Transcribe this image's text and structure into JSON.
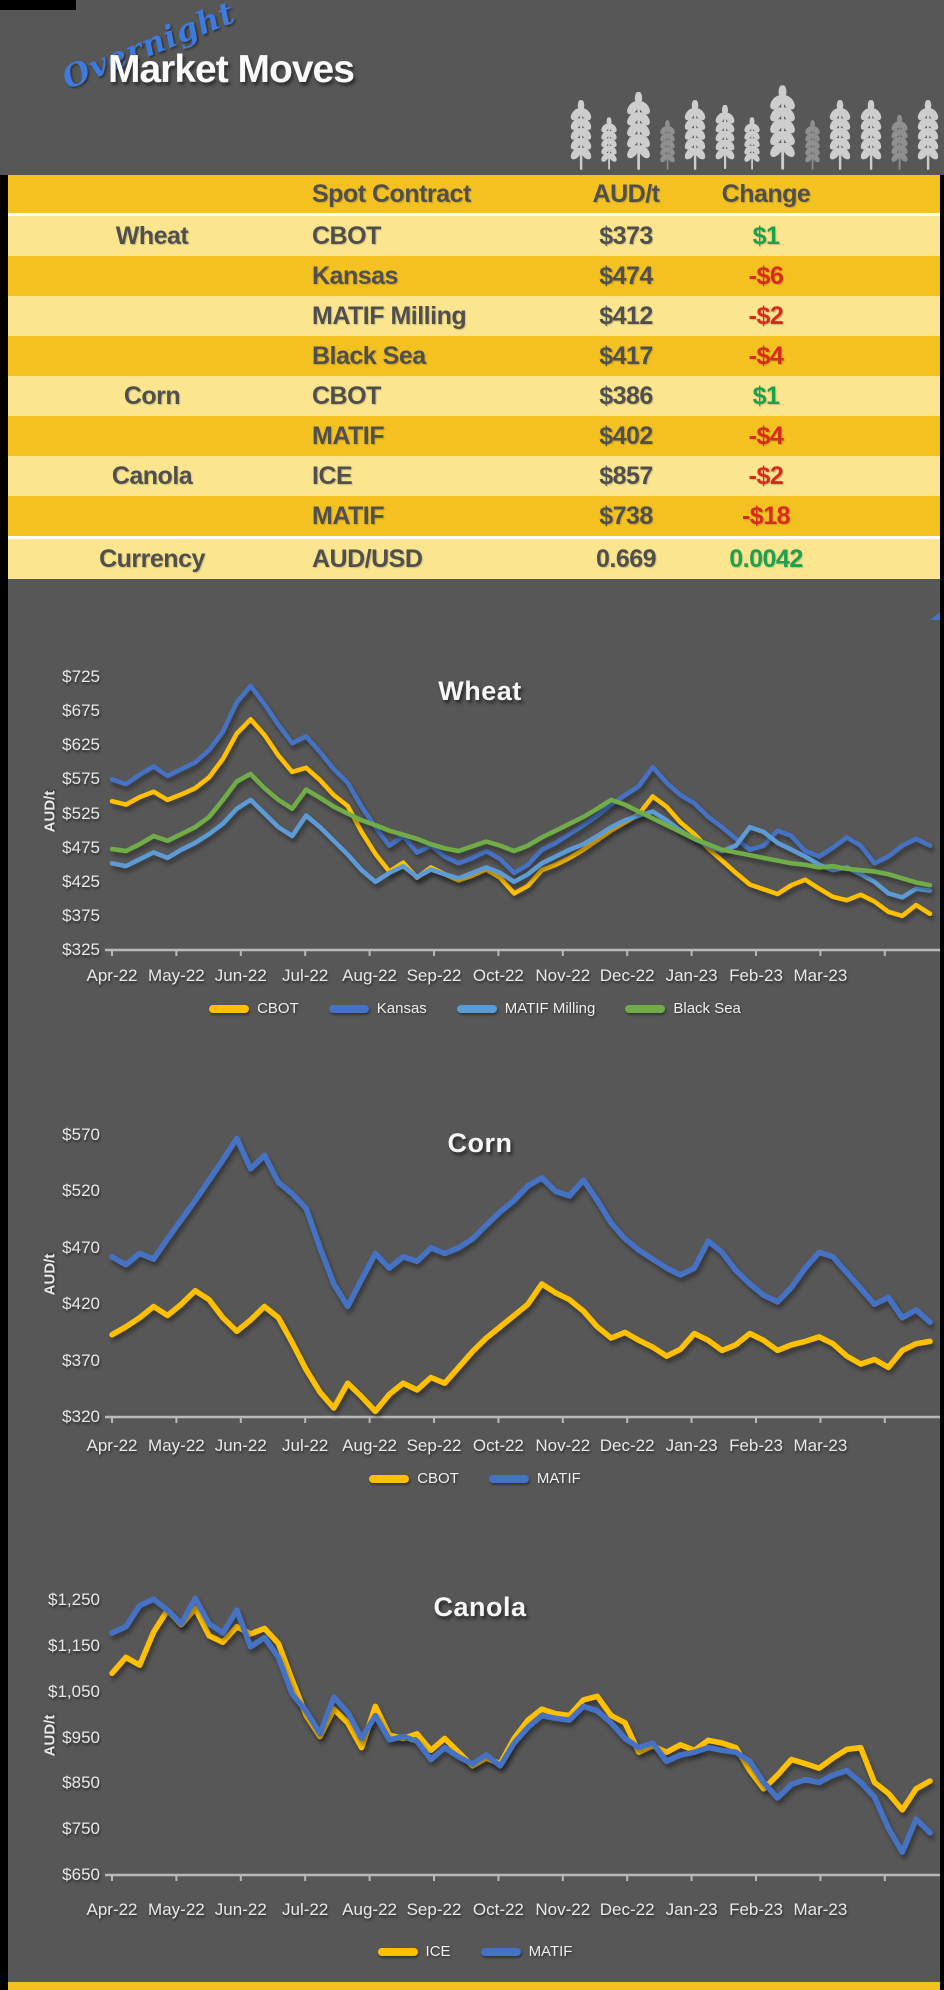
{
  "header": {
    "logo_script": "Overnight",
    "logo_main": "Market Moves",
    "wheat_icons": {
      "heights": [
        70,
        53,
        78,
        50,
        70,
        66,
        53,
        85,
        50,
        70,
        70,
        55,
        70
      ],
      "dim": [
        0,
        0,
        0,
        1,
        0,
        0,
        0,
        0,
        1,
        0,
        0,
        1,
        0
      ]
    }
  },
  "table": {
    "columns": [
      "",
      "Spot Contract",
      "AUD/t",
      "Change"
    ],
    "rows": [
      {
        "commodity": "Wheat",
        "contract": "CBOT",
        "value": "$373",
        "change": "$1",
        "direction": "up",
        "shade": "pale"
      },
      {
        "commodity": "",
        "contract": "Kansas",
        "value": "$474",
        "change": "-$6",
        "direction": "down",
        "shade": "gold"
      },
      {
        "commodity": "",
        "contract": "MATIF Milling",
        "value": "$412",
        "change": "-$2",
        "direction": "down",
        "shade": "pale"
      },
      {
        "commodity": "",
        "contract": "Black Sea",
        "value": "$417",
        "change": "-$4",
        "direction": "down",
        "shade": "gold"
      },
      {
        "commodity": "Corn",
        "contract": "CBOT",
        "value": "$386",
        "change": "$1",
        "direction": "up",
        "shade": "pale"
      },
      {
        "commodity": "",
        "contract": "MATIF",
        "value": "$402",
        "change": "-$4",
        "direction": "down",
        "shade": "gold"
      },
      {
        "commodity": "Canola",
        "contract": "ICE",
        "value": "$857",
        "change": "-$2",
        "direction": "down",
        "shade": "pale"
      },
      {
        "commodity": "",
        "contract": "MATIF",
        "value": "$738",
        "change": "-$18",
        "direction": "down",
        "shade": "gold"
      },
      {
        "commodity": "Currency",
        "contract": "AUD/USD",
        "value": "0.669",
        "change": "0.0042",
        "direction": "up",
        "shade": "pale",
        "separated": true
      }
    ]
  },
  "colors": {
    "background": "#575757",
    "frame": "#000000",
    "gold": "#F3C120",
    "pale_yellow": "#FBE58E",
    "table_text": "#4F4F4F",
    "green": "#1BA24E",
    "red": "#D92A1D",
    "logo_blue": "#3E7BE0",
    "cbot_yellow": "#FFC000",
    "kansas_blue": "#4472C4",
    "matif_light_blue": "#5B9BD5",
    "black_sea_green": "#70AD47",
    "axis_gray": "#B9B9B9",
    "label_gray": "#E9E9E9"
  },
  "chart_data": [
    {
      "type": "line",
      "title": "Wheat",
      "ylabel": "AUD/t",
      "ylim": [
        325,
        725
      ],
      "grid": false,
      "legend_position": "bottom",
      "ytick_values": [
        325,
        375,
        425,
        475,
        525,
        575,
        625,
        675,
        725
      ],
      "ytick_labels": [
        "$325",
        "$375",
        "$425",
        "$475",
        "$525",
        "$575",
        "$625",
        "$675",
        "$725"
      ],
      "x": [
        "Apr-22",
        "May-22",
        "Jun-22",
        "Jul-22",
        "Aug-22",
        "Sep-22",
        "Oct-22",
        "Nov-22",
        "Dec-22",
        "Jan-23",
        "Feb-23",
        "Mar-23"
      ],
      "series": [
        {
          "name": "CBOT",
          "color": "#FFC000",
          "values": [
            543,
            538,
            549,
            557,
            545,
            553,
            562,
            578,
            605,
            642,
            663,
            640,
            610,
            586,
            592,
            574,
            552,
            536,
            498,
            466,
            440,
            453,
            431,
            446,
            436,
            427,
            434,
            443,
            431,
            408,
            419,
            442,
            450,
            460,
            472,
            486,
            500,
            512,
            524,
            550,
            535,
            512,
            495,
            474,
            456,
            438,
            421,
            414,
            407,
            420,
            428,
            415,
            403,
            398,
            406,
            396,
            381,
            375,
            391,
            378
          ]
        },
        {
          "name": "Kansas",
          "color": "#4472C4",
          "values": [
            575,
            568,
            582,
            594,
            580,
            590,
            600,
            618,
            645,
            688,
            712,
            685,
            655,
            628,
            638,
            615,
            590,
            570,
            535,
            505,
            478,
            492,
            468,
            478,
            462,
            452,
            460,
            470,
            458,
            438,
            450,
            472,
            482,
            495,
            508,
            522,
            538,
            552,
            565,
            593,
            570,
            552,
            540,
            520,
            505,
            488,
            472,
            478,
            500,
            492,
            470,
            462,
            475,
            490,
            478,
            452,
            462,
            478,
            488,
            478
          ]
        },
        {
          "name": "MATIF Milling",
          "color": "#5B9BD5",
          "values": [
            452,
            448,
            458,
            468,
            460,
            472,
            482,
            495,
            510,
            532,
            545,
            525,
            505,
            492,
            522,
            505,
            485,
            465,
            442,
            425,
            438,
            448,
            432,
            443,
            436,
            430,
            438,
            446,
            438,
            425,
            436,
            452,
            462,
            472,
            480,
            492,
            505,
            515,
            522,
            528,
            515,
            500,
            488,
            478,
            470,
            478,
            505,
            498,
            482,
            472,
            462,
            450,
            442,
            446,
            436,
            425,
            408,
            402,
            415,
            412
          ]
        },
        {
          "name": "Black Sea",
          "color": "#70AD47",
          "values": [
            473,
            470,
            480,
            492,
            485,
            495,
            505,
            520,
            545,
            572,
            583,
            562,
            545,
            532,
            560,
            548,
            535,
            525,
            515,
            508,
            500,
            494,
            488,
            480,
            474,
            470,
            477,
            484,
            478,
            470,
            478,
            490,
            500,
            510,
            520,
            532,
            545,
            538,
            528,
            518,
            508,
            498,
            488,
            480,
            472,
            468,
            464,
            460,
            456,
            452,
            450,
            446,
            448,
            444,
            442,
            440,
            436,
            430,
            424,
            420
          ]
        }
      ]
    },
    {
      "type": "line",
      "title": "Corn",
      "ylabel": "AUD/t",
      "ylim": [
        320,
        570
      ],
      "grid": false,
      "legend_position": "bottom",
      "ytick_values": [
        320,
        370,
        420,
        470,
        520,
        570
      ],
      "ytick_labels": [
        "$320",
        "$370",
        "$420",
        "$470",
        "$520",
        "$570"
      ],
      "x": [
        "Apr-22",
        "May-22",
        "Jun-22",
        "Jul-22",
        "Aug-22",
        "Sep-22",
        "Oct-22",
        "Nov-22",
        "Dec-22",
        "Jan-23",
        "Feb-23",
        "Mar-23"
      ],
      "series": [
        {
          "name": "CBOT",
          "color": "#FFC000",
          "values": [
            393,
            400,
            408,
            418,
            410,
            420,
            432,
            424,
            408,
            396,
            406,
            418,
            408,
            386,
            362,
            342,
            328,
            350,
            338,
            325,
            340,
            350,
            344,
            355,
            350,
            364,
            378,
            390,
            400,
            410,
            420,
            438,
            430,
            424,
            414,
            400,
            390,
            395,
            388,
            382,
            374,
            380,
            394,
            388,
            379,
            384,
            394,
            388,
            379,
            384,
            387,
            391,
            385,
            374,
            367,
            371,
            364,
            379,
            385,
            387
          ]
        },
        {
          "name": "MATIF",
          "color": "#4472C4",
          "values": [
            462,
            455,
            465,
            460,
            478,
            495,
            512,
            530,
            548,
            567,
            540,
            552,
            528,
            518,
            505,
            470,
            438,
            418,
            442,
            465,
            452,
            462,
            458,
            470,
            465,
            470,
            478,
            490,
            502,
            512,
            525,
            532,
            520,
            516,
            530,
            512,
            492,
            478,
            468,
            460,
            452,
            446,
            452,
            476,
            466,
            450,
            438,
            428,
            422,
            435,
            452,
            466,
            462,
            448,
            434,
            420,
            426,
            408,
            415,
            404
          ]
        }
      ]
    },
    {
      "type": "line",
      "title": "Canola",
      "ylabel": "AUD/t",
      "ylim": [
        650,
        1250
      ],
      "grid": false,
      "legend_position": "bottom",
      "ytick_values": [
        650,
        750,
        850,
        950,
        1050,
        1150,
        1250
      ],
      "ytick_labels": [
        "$650",
        "$750",
        "$850",
        "$950",
        "$1,050",
        "$1,150",
        "$1,250"
      ],
      "x": [
        "Apr-22",
        "May-22",
        "Jun-22",
        "Jul-22",
        "Aug-22",
        "Sep-22",
        "Oct-22",
        "Nov-22",
        "Dec-22",
        "Jan-23",
        "Feb-23",
        "Mar-23"
      ],
      "series": [
        {
          "name": "ICE",
          "color": "#FFC000",
          "values": [
            1090,
            1125,
            1108,
            1180,
            1228,
            1196,
            1232,
            1172,
            1158,
            1192,
            1176,
            1188,
            1155,
            1075,
            998,
            952,
            1012,
            982,
            928,
            1018,
            955,
            948,
            958,
            922,
            948,
            918,
            888,
            905,
            893,
            948,
            988,
            1012,
            1002,
            998,
            1032,
            1040,
            998,
            982,
            918,
            932,
            918,
            934,
            922,
            944,
            938,
            928,
            878,
            838,
            868,
            902,
            893,
            883,
            905,
            924,
            928,
            852,
            828,
            792,
            838,
            855
          ]
        },
        {
          "name": "MATIF",
          "color": "#4472C4",
          "values": [
            1178,
            1192,
            1238,
            1252,
            1228,
            1198,
            1254,
            1198,
            1178,
            1228,
            1148,
            1168,
            1125,
            1045,
            1008,
            958,
            1038,
            1005,
            948,
            998,
            945,
            952,
            942,
            902,
            928,
            908,
            892,
            912,
            888,
            938,
            972,
            998,
            992,
            988,
            1018,
            1008,
            982,
            948,
            928,
            938,
            898,
            912,
            918,
            928,
            922,
            918,
            898,
            852,
            818,
            848,
            858,
            852,
            868,
            878,
            852,
            820,
            752,
            700,
            772,
            742
          ]
        }
      ]
    }
  ]
}
